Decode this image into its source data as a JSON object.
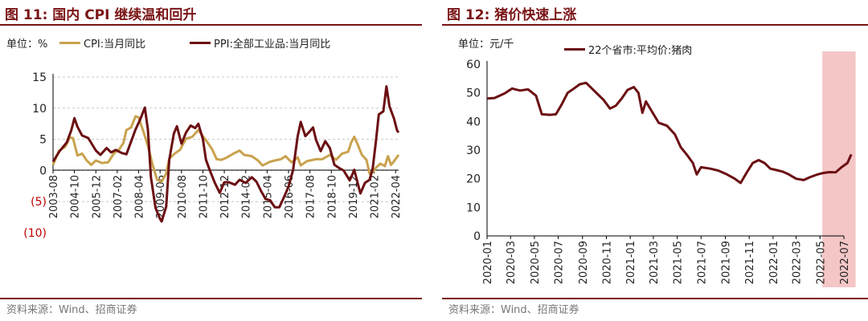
{
  "source_label": "资料来源：Wind、招商证券",
  "colors": {
    "title": "#7a1416",
    "cpi": "#c9a24e",
    "ppi": "#6b0f12",
    "pork": "#6b0f12",
    "negative": "#c00000",
    "highlight": "#f4c6c6"
  },
  "chart_data": [
    {
      "id": "cpi-ppi",
      "type": "line",
      "title": "图 11:  国内 CPI 继续温和回升",
      "unit": "单位：%",
      "ylim": [
        -10,
        15
      ],
      "yticks": [
        -10,
        -5,
        0,
        5,
        10,
        15
      ],
      "ytick_labels": [
        "(10)",
        "(5)",
        "0",
        "5",
        "10",
        "15"
      ],
      "grid": true,
      "legend_position": "top",
      "xticks": [
        "2003-08",
        "2004-10",
        "2005-12",
        "2007-02",
        "2008-04",
        "2009-06",
        "2010-08",
        "2011-10",
        "2012-12",
        "2014-02",
        "2015-04",
        "2016-06",
        "2017-08",
        "2018-10",
        "2019-12",
        "2021-02",
        "2022-04"
      ],
      "x_start": "2003-08",
      "x_end": "2022-06",
      "series": [
        {
          "name": "CPI:当月同比",
          "color": "#c9a24e",
          "points": [
            [
              "2003-08",
              0.9
            ],
            [
              "2003-12",
              3.2
            ],
            [
              "2004-04",
              3.8
            ],
            [
              "2004-07",
              5.3
            ],
            [
              "2004-09",
              5.2
            ],
            [
              "2004-12",
              2.4
            ],
            [
              "2005-03",
              2.7
            ],
            [
              "2005-06",
              1.6
            ],
            [
              "2005-09",
              0.9
            ],
            [
              "2005-12",
              1.6
            ],
            [
              "2006-04",
              1.2
            ],
            [
              "2006-08",
              1.3
            ],
            [
              "2006-12",
              2.8
            ],
            [
              "2007-03",
              3.3
            ],
            [
              "2007-06",
              4.4
            ],
            [
              "2007-08",
              6.5
            ],
            [
              "2007-11",
              6.9
            ],
            [
              "2008-02",
              8.7
            ],
            [
              "2008-04",
              8.5
            ],
            [
              "2008-07",
              6.3
            ],
            [
              "2008-10",
              4.0
            ],
            [
              "2009-01",
              1.0
            ],
            [
              "2009-04",
              -1.5
            ],
            [
              "2009-07",
              -1.8
            ],
            [
              "2009-10",
              -0.5
            ],
            [
              "2009-12",
              1.9
            ],
            [
              "2010-04",
              2.8
            ],
            [
              "2010-07",
              3.3
            ],
            [
              "2010-11",
              5.1
            ],
            [
              "2011-03",
              5.4
            ],
            [
              "2011-07",
              6.5
            ],
            [
              "2011-10",
              5.5
            ],
            [
              "2012-01",
              4.5
            ],
            [
              "2012-04",
              3.4
            ],
            [
              "2012-07",
              1.8
            ],
            [
              "2012-10",
              1.7
            ],
            [
              "2013-01",
              2.0
            ],
            [
              "2013-06",
              2.7
            ],
            [
              "2013-10",
              3.2
            ],
            [
              "2014-01",
              2.5
            ],
            [
              "2014-06",
              2.3
            ],
            [
              "2014-10",
              1.6
            ],
            [
              "2015-01",
              0.8
            ],
            [
              "2015-06",
              1.4
            ],
            [
              "2015-09",
              1.6
            ],
            [
              "2016-01",
              1.8
            ],
            [
              "2016-04",
              2.3
            ],
            [
              "2016-08",
              1.3
            ],
            [
              "2016-12",
              2.1
            ],
            [
              "2017-02",
              0.8
            ],
            [
              "2017-06",
              1.5
            ],
            [
              "2017-12",
              1.8
            ],
            [
              "2018-04",
              1.8
            ],
            [
              "2018-09",
              2.5
            ],
            [
              "2019-01",
              1.7
            ],
            [
              "2019-05",
              2.7
            ],
            [
              "2019-09",
              3.0
            ],
            [
              "2019-11",
              4.5
            ],
            [
              "2020-01",
              5.4
            ],
            [
              "2020-03",
              4.3
            ],
            [
              "2020-06",
              2.5
            ],
            [
              "2020-09",
              1.7
            ],
            [
              "2020-11",
              -0.5
            ],
            [
              "2021-01",
              -0.3
            ],
            [
              "2021-03",
              0.4
            ],
            [
              "2021-06",
              1.1
            ],
            [
              "2021-09",
              0.7
            ],
            [
              "2021-11",
              2.3
            ],
            [
              "2022-01",
              0.9
            ],
            [
              "2022-03",
              1.5
            ],
            [
              "2022-06",
              2.5
            ]
          ]
        },
        {
          "name": "PPI:全部工业品:当月同比",
          "color": "#6b0f12",
          "points": [
            [
              "2003-08",
              1.4
            ],
            [
              "2003-12",
              3.0
            ],
            [
              "2004-05",
              4.5
            ],
            [
              "2004-08",
              6.5
            ],
            [
              "2004-10",
              8.4
            ],
            [
              "2004-12",
              7.0
            ],
            [
              "2005-03",
              5.6
            ],
            [
              "2005-07",
              5.2
            ],
            [
              "2005-10",
              4.0
            ],
            [
              "2005-12",
              3.2
            ],
            [
              "2006-03",
              2.5
            ],
            [
              "2006-07",
              3.6
            ],
            [
              "2006-10",
              2.9
            ],
            [
              "2007-01",
              3.3
            ],
            [
              "2007-05",
              2.8
            ],
            [
              "2007-08",
              2.6
            ],
            [
              "2007-11",
              4.6
            ],
            [
              "2008-02",
              6.6
            ],
            [
              "2008-05",
              8.2
            ],
            [
              "2008-08",
              10.1
            ],
            [
              "2008-10",
              6.6
            ],
            [
              "2008-12",
              -1.1
            ],
            [
              "2009-03",
              -6.0
            ],
            [
              "2009-06",
              -7.8
            ],
            [
              "2009-07",
              -8.2
            ],
            [
              "2009-10",
              -5.8
            ],
            [
              "2009-12",
              1.7
            ],
            [
              "2010-03",
              5.9
            ],
            [
              "2010-05",
              7.1
            ],
            [
              "2010-08",
              4.3
            ],
            [
              "2010-11",
              6.1
            ],
            [
              "2011-02",
              7.2
            ],
            [
              "2011-05",
              6.8
            ],
            [
              "2011-07",
              7.5
            ],
            [
              "2011-10",
              5.0
            ],
            [
              "2011-12",
              1.7
            ],
            [
              "2012-03",
              -0.3
            ],
            [
              "2012-06",
              -2.1
            ],
            [
              "2012-09",
              -3.6
            ],
            [
              "2012-12",
              -1.9
            ],
            [
              "2013-03",
              -1.9
            ],
            [
              "2013-07",
              -2.3
            ],
            [
              "2013-10",
              -1.5
            ],
            [
              "2014-02",
              -2.0
            ],
            [
              "2014-06",
              -1.1
            ],
            [
              "2014-09",
              -1.8
            ],
            [
              "2014-12",
              -3.3
            ],
            [
              "2015-03",
              -4.6
            ],
            [
              "2015-06",
              -4.8
            ],
            [
              "2015-09",
              -5.9
            ],
            [
              "2015-12",
              -5.9
            ],
            [
              "2016-03",
              -4.3
            ],
            [
              "2016-06",
              -2.6
            ],
            [
              "2016-09",
              0.1
            ],
            [
              "2016-12",
              5.5
            ],
            [
              "2017-02",
              7.8
            ],
            [
              "2017-05",
              5.5
            ],
            [
              "2017-08",
              6.3
            ],
            [
              "2017-10",
              6.9
            ],
            [
              "2017-12",
              4.9
            ],
            [
              "2018-03",
              3.1
            ],
            [
              "2018-06",
              4.7
            ],
            [
              "2018-09",
              3.6
            ],
            [
              "2018-12",
              0.9
            ],
            [
              "2019-03",
              0.4
            ],
            [
              "2019-06",
              0.0
            ],
            [
              "2019-10",
              -1.6
            ],
            [
              "2019-12",
              -0.5
            ],
            [
              "2020-01",
              0.1
            ],
            [
              "2020-05",
              -3.7
            ],
            [
              "2020-08",
              -2.0
            ],
            [
              "2020-11",
              -1.5
            ],
            [
              "2021-01",
              0.3
            ],
            [
              "2021-03",
              4.4
            ],
            [
              "2021-05",
              9.0
            ],
            [
              "2021-08",
              9.5
            ],
            [
              "2021-10",
              13.5
            ],
            [
              "2021-12",
              10.3
            ],
            [
              "2022-03",
              8.3
            ],
            [
              "2022-05",
              6.4
            ],
            [
              "2022-06",
              6.1
            ]
          ]
        }
      ]
    },
    {
      "id": "pork",
      "type": "line",
      "title": "图 12:  猪价快速上涨",
      "unit": "单位：元/千",
      "ylim": [
        0,
        60
      ],
      "yticks": [
        0,
        10,
        20,
        30,
        40,
        50,
        60
      ],
      "ytick_labels": [
        "0",
        "10",
        "20",
        "30",
        "40",
        "50",
        "60"
      ],
      "grid": false,
      "legend_position": "top",
      "xticks": [
        "2020-01",
        "2020-03",
        "2020-05",
        "2020-07",
        "2020-09",
        "2020-11",
        "2021-01",
        "2021-03",
        "2021-05",
        "2021-07",
        "2021-09",
        "2021-11",
        "2022-01",
        "2022-03",
        "2022-05",
        "2022-07"
      ],
      "x_start": "2020-01",
      "x_end": "2022-07",
      "highlight": [
        "2022-05-07",
        "2022-07-31"
      ],
      "series": [
        {
          "name": "22个省市:平均价:猪肉",
          "color": "#6b0f12",
          "points": [
            [
              "2020-01-01",
              48.0
            ],
            [
              "2020-01-20",
              48.2
            ],
            [
              "2020-02-15",
              49.8
            ],
            [
              "2020-03-05",
              51.5
            ],
            [
              "2020-03-25",
              50.8
            ],
            [
              "2020-04-15",
              51.2
            ],
            [
              "2020-05-05",
              49.0
            ],
            [
              "2020-05-20",
              42.5
            ],
            [
              "2020-06-10",
              42.3
            ],
            [
              "2020-06-25",
              42.5
            ],
            [
              "2020-07-10",
              46.0
            ],
            [
              "2020-07-25",
              50.0
            ],
            [
              "2020-08-10",
              51.5
            ],
            [
              "2020-08-25",
              53.0
            ],
            [
              "2020-09-10",
              53.5
            ],
            [
              "2020-09-25",
              51.5
            ],
            [
              "2020-10-10",
              49.5
            ],
            [
              "2020-10-25",
              47.5
            ],
            [
              "2020-11-10",
              44.5
            ],
            [
              "2020-11-25",
              45.5
            ],
            [
              "2020-12-10",
              48.0
            ],
            [
              "2020-12-25",
              51.0
            ],
            [
              "2021-01-10",
              52.0
            ],
            [
              "2021-01-22",
              50.0
            ],
            [
              "2021-02-01",
              43.0
            ],
            [
              "2021-02-10",
              47.0
            ],
            [
              "2021-02-25",
              43.5
            ],
            [
              "2021-03-15",
              39.5
            ],
            [
              "2021-04-05",
              38.5
            ],
            [
              "2021-04-25",
              35.5
            ],
            [
              "2021-05-10",
              31.0
            ],
            [
              "2021-05-25",
              28.5
            ],
            [
              "2021-06-10",
              25.5
            ],
            [
              "2021-06-20",
              21.5
            ],
            [
              "2021-07-01",
              24.0
            ],
            [
              "2021-07-25",
              23.5
            ],
            [
              "2021-08-15",
              22.8
            ],
            [
              "2021-09-05",
              21.5
            ],
            [
              "2021-09-25",
              20.0
            ],
            [
              "2021-10-10",
              18.5
            ],
            [
              "2021-10-25",
              22.0
            ],
            [
              "2021-11-10",
              25.5
            ],
            [
              "2021-11-25",
              26.5
            ],
            [
              "2021-12-10",
              25.5
            ],
            [
              "2021-12-25",
              23.5
            ],
            [
              "2022-01-10",
              23.0
            ],
            [
              "2022-01-25",
              22.5
            ],
            [
              "2022-02-10",
              21.5
            ],
            [
              "2022-03-01",
              20.0
            ],
            [
              "2022-03-20",
              19.5
            ],
            [
              "2022-04-05",
              20.5
            ],
            [
              "2022-04-25",
              21.5
            ],
            [
              "2022-05-10",
              22.0
            ],
            [
              "2022-05-25",
              22.3
            ],
            [
              "2022-06-10",
              22.2
            ],
            [
              "2022-06-25",
              24.0
            ],
            [
              "2022-07-10",
              25.5
            ],
            [
              "2022-07-20",
              28.5
            ]
          ]
        }
      ]
    }
  ]
}
